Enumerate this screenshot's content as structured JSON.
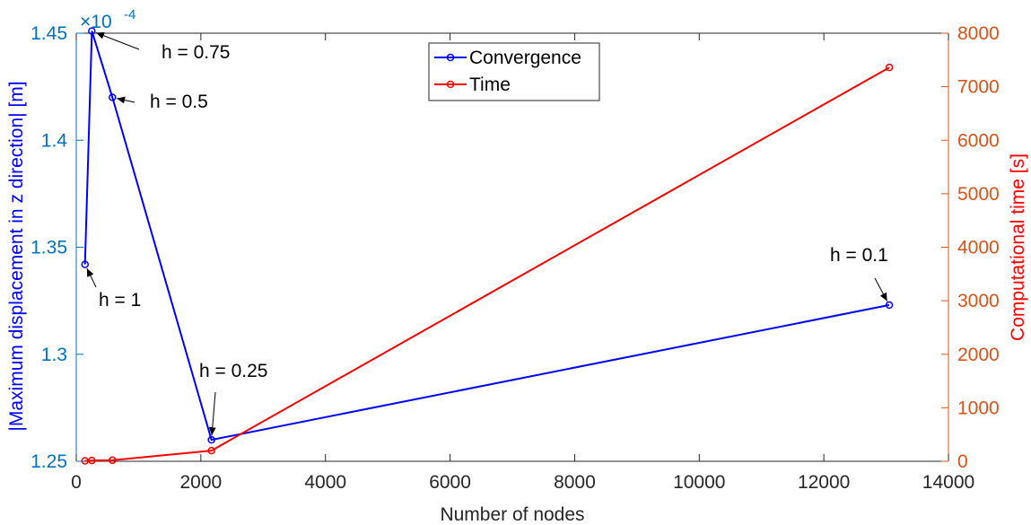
{
  "chart_data": {
    "type": "line",
    "xlabel": "Number of nodes",
    "xlim": [
      0,
      14000
    ],
    "xticks": [
      0,
      2000,
      4000,
      6000,
      8000,
      10000,
      12000,
      14000
    ],
    "grid": false,
    "legend_position": "top-center",
    "left_axis": {
      "label": "|Maximum displacement in z direction| [m]",
      "exponent_label_base": "×10",
      "exponent_label_power": "-4",
      "ylim": [
        1.25,
        1.45
      ],
      "ticks": [
        1.25,
        1.3,
        1.35,
        1.4,
        1.45
      ],
      "tick_labels": [
        "1.25",
        "1.3",
        "1.35",
        "1.4",
        "1.45"
      ],
      "label_color": "#0000ff",
      "tick_color": "#0072bd"
    },
    "right_axis": {
      "label": "Computational time [s]",
      "ylim": [
        0,
        8000
      ],
      "ticks": [
        0,
        1000,
        2000,
        3000,
        4000,
        5000,
        6000,
        7000,
        8000
      ],
      "label_color": "#ff0000",
      "tick_color": "#d95319"
    },
    "series": [
      {
        "name": "Convergence",
        "axis": "left",
        "color": "#0000ff",
        "x": [
          140,
          250,
          580,
          2170,
          13050
        ],
        "y": [
          1.342,
          1.451,
          1.42,
          1.26,
          1.323
        ]
      },
      {
        "name": "Time",
        "axis": "right",
        "color": "#ff0000",
        "x": [
          140,
          250,
          580,
          2170,
          13050
        ],
        "y": [
          8,
          15,
          20,
          200,
          7360
        ]
      }
    ],
    "annotations": [
      {
        "text": "h = 1",
        "series": 0,
        "point": 0
      },
      {
        "text": "h = 0.75",
        "series": 0,
        "point": 1
      },
      {
        "text": "h = 0.5",
        "series": 0,
        "point": 2
      },
      {
        "text": "h = 0.25",
        "series": 0,
        "point": 3
      },
      {
        "text": "h = 0.1",
        "series": 0,
        "point": 4
      }
    ]
  }
}
